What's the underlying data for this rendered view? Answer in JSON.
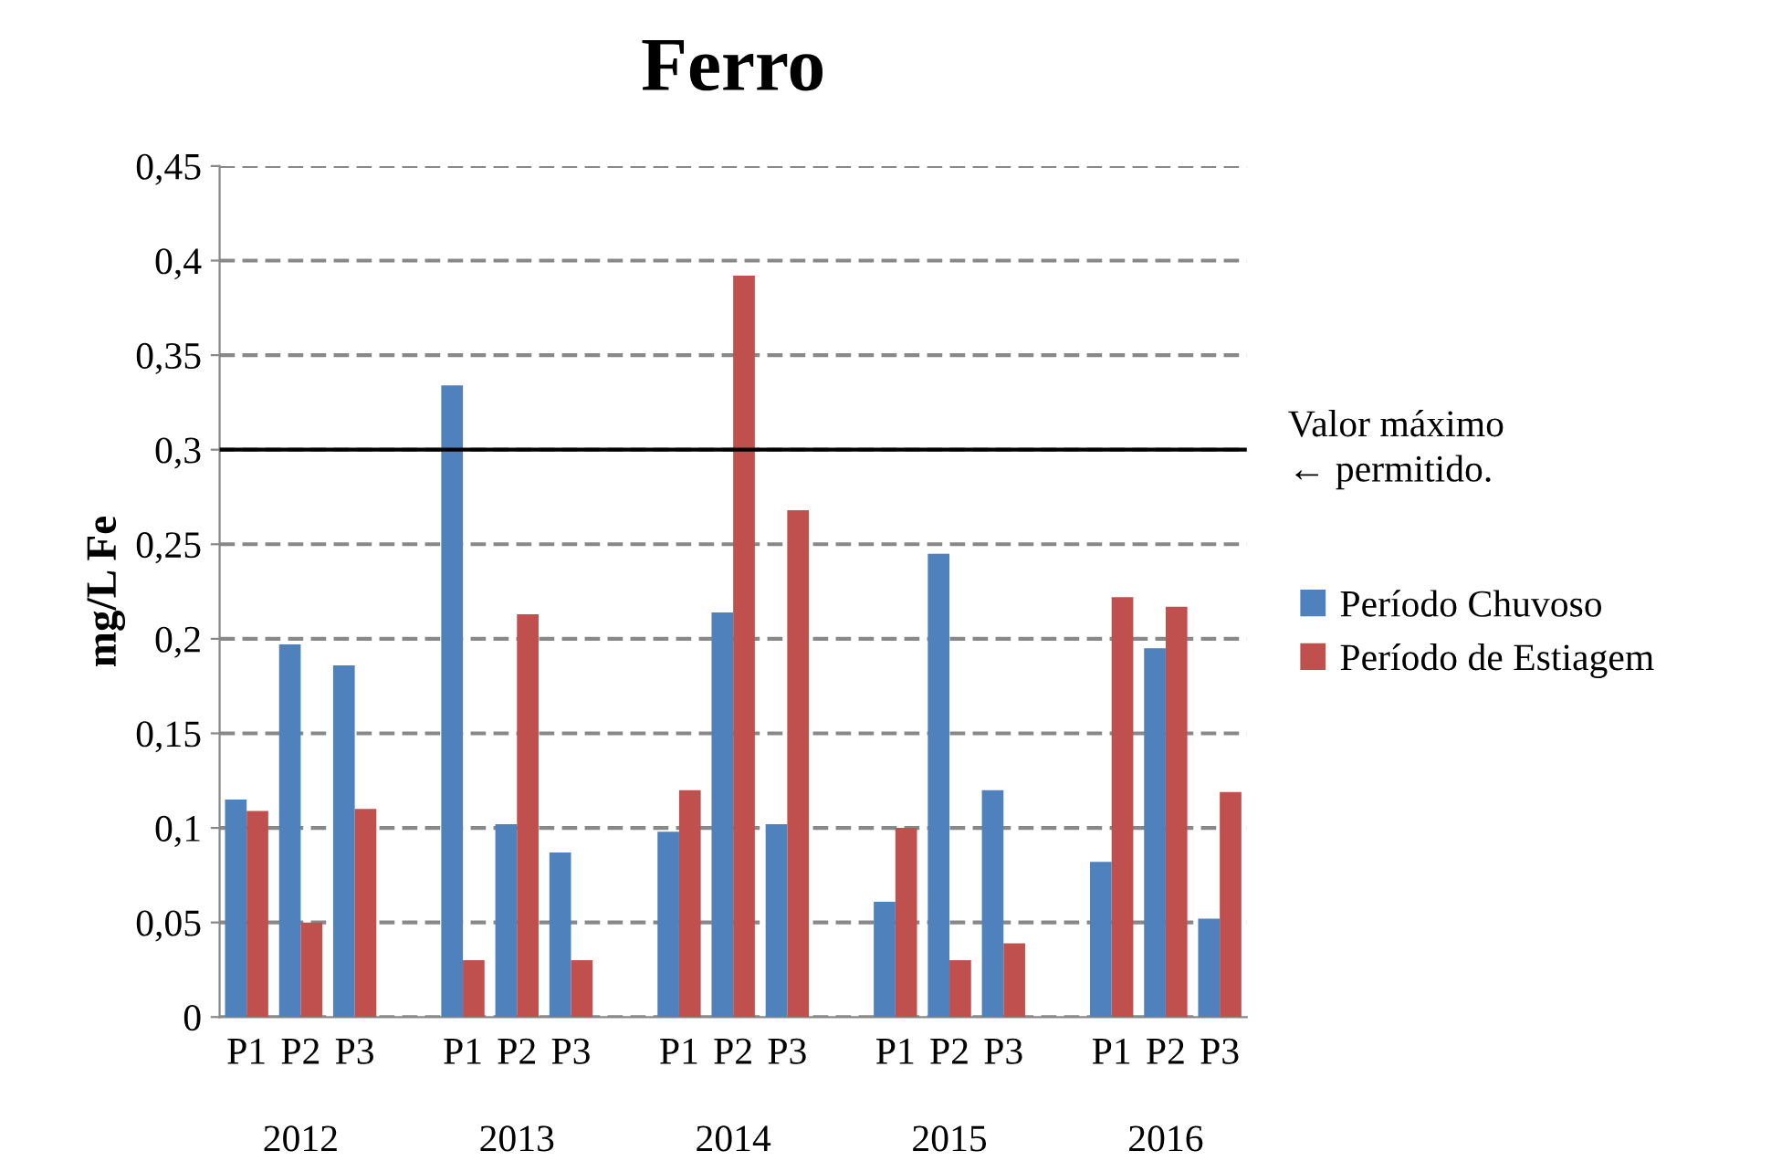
{
  "chart_data": {
    "type": "bar",
    "title": "Ferro",
    "ylabel": "mg/L Fe",
    "categories": [
      "P1",
      "P2",
      "P3",
      null,
      "P1",
      "P2",
      "P3",
      null,
      "P1",
      "P2",
      "P3",
      null,
      "P1",
      "P2",
      "P3",
      null,
      "P1",
      "P2",
      "P3"
    ],
    "series": [
      {
        "name": "Período Chuvoso",
        "color": "#4f81bd",
        "values": [
          0.115,
          0.197,
          0.186,
          null,
          0.334,
          0.102,
          0.087,
          null,
          0.098,
          0.214,
          0.102,
          null,
          0.061,
          0.245,
          0.12,
          null,
          0.082,
          0.195,
          0.052
        ]
      },
      {
        "name": "Período de Estiagem",
        "color": "#c0504d",
        "values": [
          0.109,
          0.05,
          0.11,
          null,
          0.03,
          0.213,
          0.03,
          null,
          0.12,
          0.392,
          0.268,
          null,
          0.1,
          0.03,
          0.039,
          null,
          0.222,
          0.217,
          0.119
        ]
      }
    ],
    "annotations": [
      "2012",
      "2013",
      "2014",
      "2015",
      "2016"
    ],
    "ref_lines": [
      {
        "axis": "y",
        "value": 0.3,
        "label": "Valor máximo\n← permitido.",
        "color": "#000000",
        "line_style": "solid"
      }
    ],
    "ylim": [
      0,
      0.45
    ],
    "yticks": [
      0,
      {
        "value": 0.05,
        "label": "0,05"
      },
      {
        "value": 0.1,
        "label": "0,1"
      },
      {
        "value": 0.15,
        "label": "0,15"
      },
      {
        "value": 0.2,
        "label": "0,2"
      },
      {
        "value": 0.25,
        "label": "0,25"
      },
      {
        "value": 0.3,
        "label": "0,3"
      },
      {
        "value": 0.35,
        "label": "0,35"
      },
      {
        "value": 0.4,
        "label": "0,4"
      },
      {
        "value": 0.45,
        "label": "0,45"
      }
    ],
    "grid": "y",
    "legend": "right"
  }
}
